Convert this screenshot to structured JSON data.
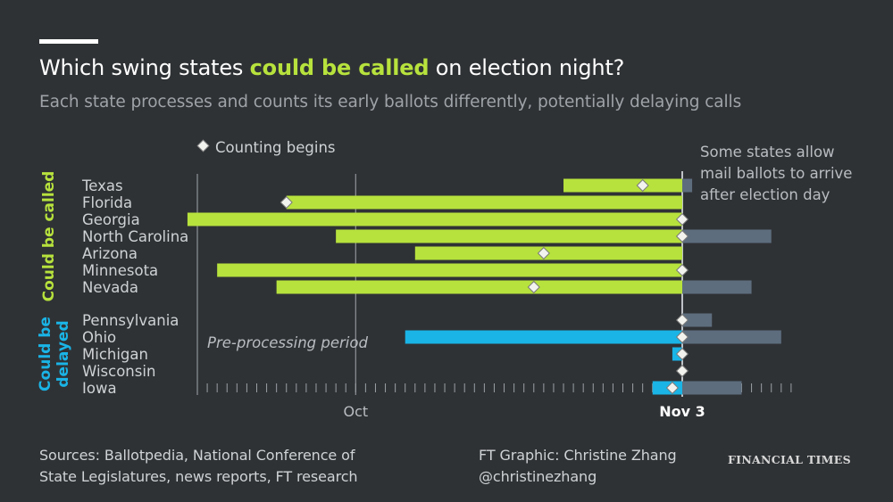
{
  "header": {
    "title_pre": "Which swing states ",
    "title_highlight": "could be called",
    "title_post": " on election night?",
    "subtitle": "Each state processes and counts its early ballots differently, potentially delaying calls"
  },
  "footer": {
    "sources_line1": "Sources: Ballotpedia, National Conference of",
    "sources_line2": "State Legislatures, news reports, FT research",
    "credit_line1": "FT Graphic: Christine Zhang",
    "credit_line2": "@christinezhang",
    "logo": "FINANCIAL TIMES"
  },
  "colors": {
    "background": "#2f3235",
    "called": "#b7e23d",
    "delayed": "#1ab4e6",
    "post_election": "#5d6d7e",
    "axis": "#bfc3c7",
    "label": "#cfd2d5"
  },
  "chart_data": {
    "type": "bar",
    "title": "Which swing states could be called on election night?",
    "subtitle": "Each state processes and counts its early ballots differently, potentially delaying calls",
    "x_axis": {
      "unit": "days relative to Nov 3",
      "range": [
        -49,
        14
      ],
      "tick_labels": [
        {
          "label": "Oct",
          "x": -33
        },
        {
          "label": "Nov 3",
          "x": 0
        }
      ]
    },
    "legend": {
      "marker_label": "Counting begins",
      "placement": "top-left"
    },
    "annotations": {
      "post_election": "Some states allow mail ballots to arrive after election day",
      "pre_processing": "Pre-processing period"
    },
    "groups": [
      {
        "label": "Could be called",
        "color": "#b7e23d",
        "states": [
          {
            "name": "Texas",
            "pre_start": -12,
            "counting_begins": -4,
            "post_end": 1
          },
          {
            "name": "Florida",
            "pre_start": -40,
            "counting_begins": -40,
            "post_end": 0
          },
          {
            "name": "Georgia",
            "pre_start": -50,
            "counting_begins": 0,
            "post_end": 0
          },
          {
            "name": "North Carolina",
            "pre_start": -35,
            "counting_begins": 0,
            "post_end": 9
          },
          {
            "name": "Arizona",
            "pre_start": -27,
            "counting_begins": -14,
            "post_end": 0
          },
          {
            "name": "Minnesota",
            "pre_start": -47,
            "counting_begins": 0,
            "post_end": 0
          },
          {
            "name": "Nevada",
            "pre_start": -41,
            "counting_begins": -15,
            "post_end": 7
          }
        ]
      },
      {
        "label": "Could be delayed",
        "color": "#1ab4e6",
        "states": [
          {
            "name": "Pennsylvania",
            "pre_start": 0,
            "counting_begins": 0,
            "post_end": 3
          },
          {
            "name": "Ohio",
            "pre_start": -28,
            "counting_begins": 0,
            "post_end": 10
          },
          {
            "name": "Michigan",
            "pre_start": -1,
            "counting_begins": 0,
            "post_end": 0
          },
          {
            "name": "Wisconsin",
            "pre_start": 0,
            "counting_begins": 0,
            "post_end": 0
          },
          {
            "name": "Iowa",
            "pre_start": -3,
            "counting_begins": -1,
            "post_end": 6
          }
        ]
      }
    ]
  }
}
